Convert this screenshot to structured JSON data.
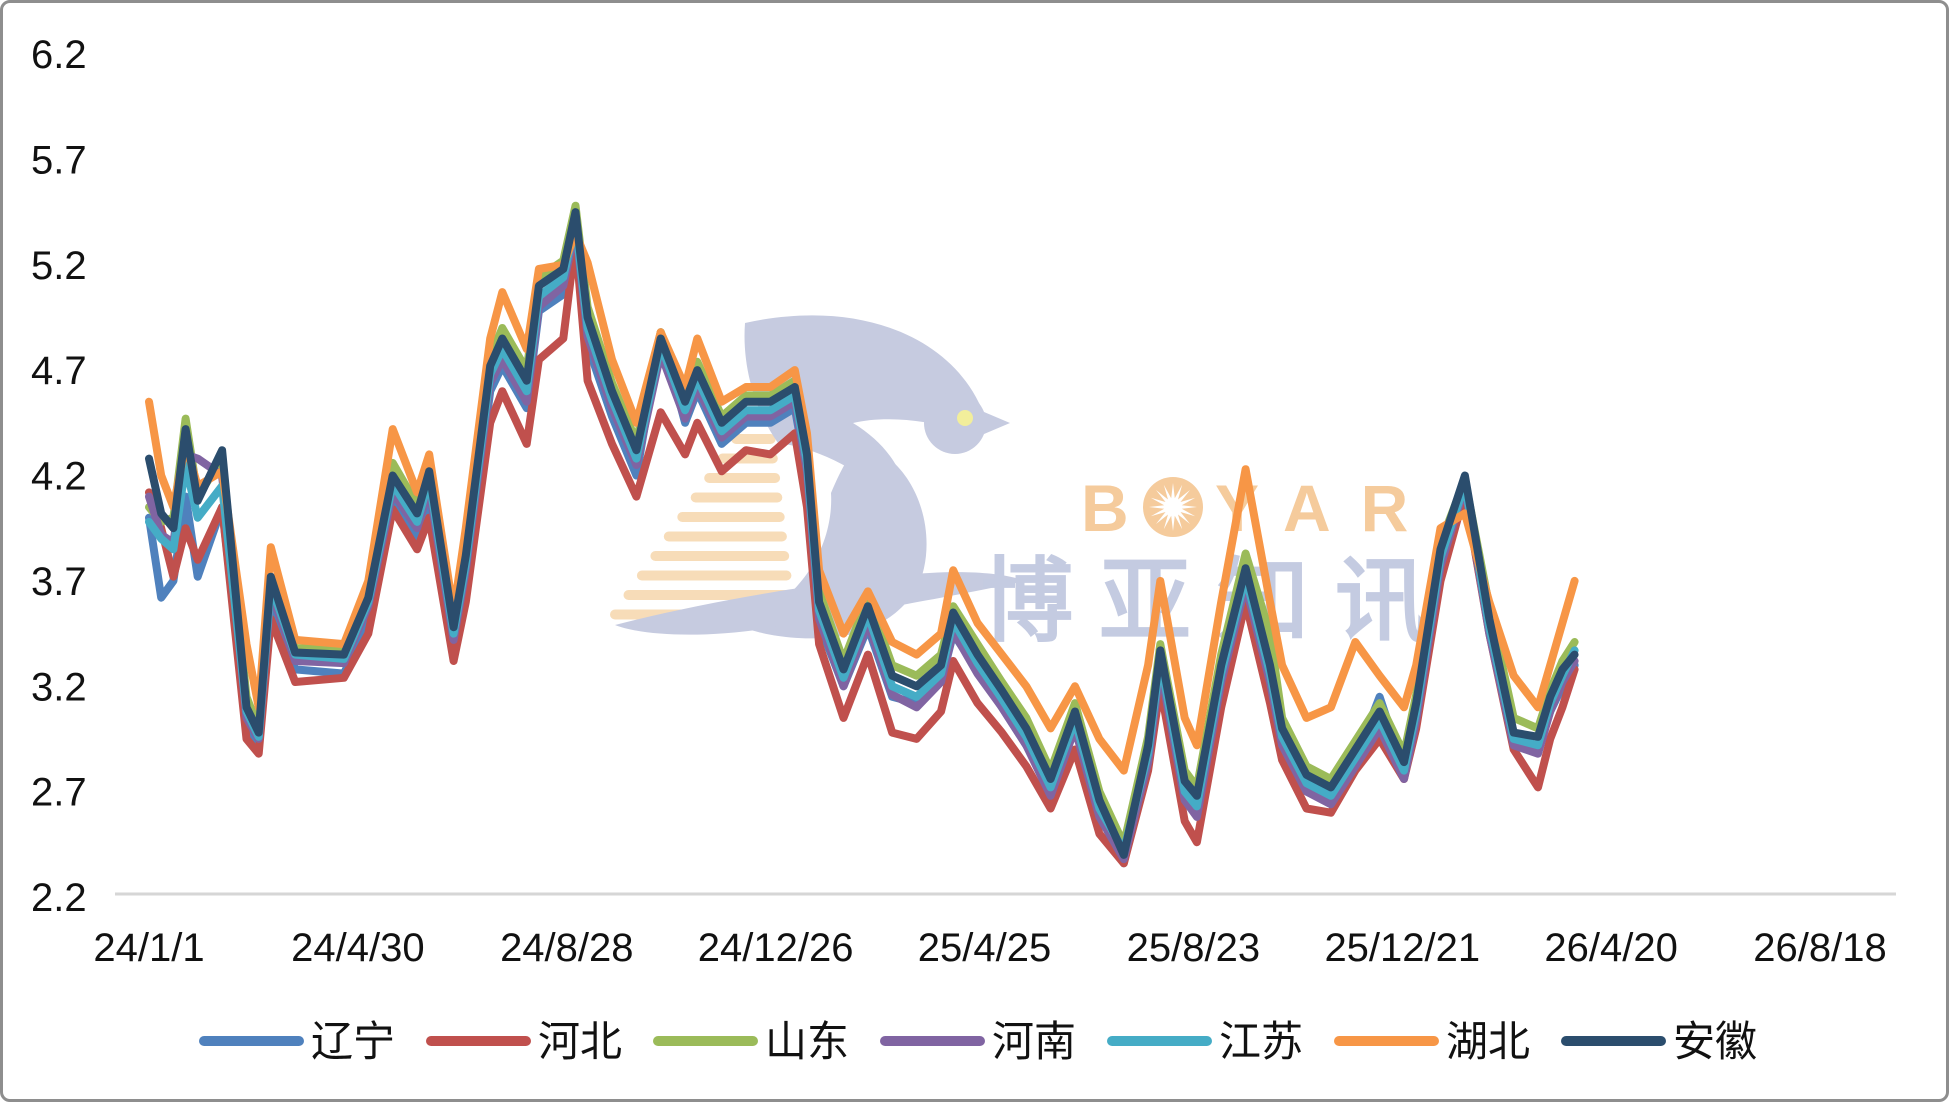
{
  "frame": {
    "background": "#ffffff",
    "border_color": "#8e8e8e",
    "axis_line_color": "#d6d6d6",
    "tick_text_color": "#111111"
  },
  "watermark": {
    "brand_latin_prefix": "B",
    "brand_latin_suffix": "YAR",
    "brand_cjk": "博亚知讯",
    "latin_color": "#f5cb9c",
    "cjk_color": "#c4cbe1",
    "dove_color": "#c6cbe0",
    "stripe_color": "#f7dcb8",
    "eye_color": "#f2ee9b"
  },
  "chart_data": {
    "type": "line",
    "title": "",
    "xlabel": "",
    "ylabel": "",
    "grid": "off",
    "legend_position": "bottom",
    "ylim": [
      2.2,
      6.2
    ],
    "y_ticks": [
      6.2,
      5.7,
      5.2,
      4.7,
      4.2,
      3.7,
      3.2,
      2.7,
      2.2
    ],
    "x_axis": {
      "unit": "days since 24/1/1",
      "tick_days": [
        0,
        120,
        240,
        360,
        480,
        600,
        720,
        840,
        960
      ],
      "tick_labels": [
        "24/1/1",
        "24/4/30",
        "24/8/28",
        "24/12/26",
        "25/4/25",
        "25/8/23",
        "25/12/21",
        "26/4/20",
        "26/8/18"
      ]
    },
    "days": [
      0,
      7,
      14,
      21,
      28,
      42,
      56,
      63,
      70,
      84,
      112,
      126,
      140,
      154,
      161,
      175,
      182,
      196,
      203,
      217,
      224,
      238,
      245,
      252,
      266,
      280,
      294,
      308,
      315,
      329,
      343,
      357,
      371,
      378,
      385,
      399,
      413,
      427,
      441,
      455,
      462,
      476,
      490,
      504,
      518,
      532,
      546,
      560,
      574,
      581,
      595,
      602,
      616,
      630,
      644,
      651,
      665,
      679,
      693,
      707,
      721,
      728,
      742,
      756,
      770,
      784,
      798,
      805,
      812,
      819
    ],
    "series": [
      {
        "id": "liaoning",
        "name": "辽宁",
        "color": "#4F81BD",
        "values": [
          4.0,
          3.62,
          3.7,
          4.1,
          3.72,
          4.05,
          3.0,
          2.92,
          3.6,
          3.28,
          3.26,
          3.5,
          4.06,
          3.9,
          4.08,
          3.38,
          3.7,
          4.6,
          4.72,
          4.52,
          4.98,
          5.06,
          5.3,
          4.82,
          4.48,
          4.2,
          4.88,
          4.45,
          4.6,
          4.35,
          4.45,
          4.45,
          4.52,
          4.2,
          3.5,
          3.2,
          3.48,
          3.15,
          3.12,
          3.22,
          3.45,
          3.28,
          3.1,
          2.92,
          2.7,
          3.0,
          2.6,
          2.36,
          2.85,
          3.3,
          2.7,
          2.62,
          3.22,
          3.7,
          3.28,
          2.95,
          2.72,
          2.68,
          2.85,
          3.15,
          2.8,
          3.06,
          3.78,
          4.12,
          3.46,
          2.92,
          2.9,
          3.08,
          3.2,
          3.3
        ]
      },
      {
        "id": "hebei",
        "name": "河北",
        "color": "#C0504D",
        "values": [
          4.12,
          3.95,
          3.72,
          3.95,
          3.8,
          4.05,
          2.95,
          2.88,
          3.52,
          3.22,
          3.24,
          3.45,
          4.04,
          3.85,
          4.0,
          3.32,
          3.6,
          4.45,
          4.6,
          4.35,
          4.75,
          4.85,
          5.32,
          4.65,
          4.35,
          4.1,
          4.5,
          4.3,
          4.45,
          4.22,
          4.32,
          4.3,
          4.4,
          4.05,
          3.4,
          3.05,
          3.35,
          2.98,
          2.95,
          3.08,
          3.32,
          3.12,
          2.98,
          2.82,
          2.62,
          2.9,
          2.5,
          2.36,
          2.8,
          3.2,
          2.56,
          2.46,
          3.1,
          3.6,
          3.12,
          2.85,
          2.62,
          2.6,
          2.8,
          2.95,
          2.76,
          3.0,
          3.7,
          4.12,
          3.45,
          2.9,
          2.72,
          2.95,
          3.1,
          3.28
        ]
      },
      {
        "id": "shandong",
        "name": "山东",
        "color": "#9BBB59",
        "values": [
          4.05,
          3.98,
          4.0,
          4.47,
          4.1,
          4.28,
          3.15,
          3.0,
          3.7,
          3.38,
          3.38,
          3.66,
          4.26,
          4.06,
          4.26,
          3.52,
          3.86,
          4.76,
          4.9,
          4.7,
          5.14,
          5.22,
          5.48,
          5.0,
          4.64,
          4.36,
          4.88,
          4.58,
          4.74,
          4.48,
          4.58,
          4.58,
          4.65,
          4.34,
          3.65,
          3.32,
          3.62,
          3.3,
          3.25,
          3.35,
          3.58,
          3.4,
          3.22,
          3.05,
          2.8,
          3.12,
          2.7,
          2.45,
          2.96,
          3.4,
          2.8,
          2.72,
          3.35,
          3.83,
          3.45,
          3.05,
          2.82,
          2.76,
          2.94,
          3.12,
          2.88,
          3.16,
          3.88,
          4.18,
          3.58,
          3.05,
          3.0,
          3.18,
          3.32,
          3.41
        ]
      },
      {
        "id": "henan",
        "name": "河南",
        "color": "#8064A2",
        "values": [
          4.1,
          3.92,
          3.88,
          4.3,
          4.28,
          4.2,
          3.05,
          2.95,
          3.65,
          3.32,
          3.31,
          3.58,
          4.12,
          3.95,
          4.14,
          3.42,
          3.75,
          4.64,
          4.75,
          4.55,
          5.0,
          5.1,
          5.38,
          4.86,
          4.52,
          4.25,
          4.78,
          4.47,
          4.62,
          4.38,
          4.48,
          4.48,
          4.55,
          4.22,
          3.52,
          3.2,
          3.5,
          3.16,
          3.1,
          3.22,
          3.46,
          3.26,
          3.1,
          2.92,
          2.68,
          3.0,
          2.58,
          2.38,
          2.84,
          3.29,
          2.66,
          2.58,
          3.22,
          3.68,
          3.22,
          2.92,
          2.7,
          2.64,
          2.82,
          3.0,
          2.76,
          3.04,
          3.77,
          4.15,
          3.45,
          2.92,
          2.88,
          3.08,
          3.22,
          3.32
        ]
      },
      {
        "id": "jiangsu",
        "name": "江苏",
        "color": "#45ACC6",
        "values": [
          3.98,
          3.9,
          3.85,
          4.25,
          4.0,
          4.15,
          3.08,
          2.96,
          3.68,
          3.35,
          3.33,
          3.6,
          4.16,
          3.98,
          4.18,
          3.45,
          3.78,
          4.68,
          4.8,
          4.6,
          5.05,
          5.14,
          5.4,
          4.9,
          4.56,
          4.28,
          4.82,
          4.51,
          4.66,
          4.41,
          4.51,
          4.51,
          4.58,
          4.26,
          3.56,
          3.24,
          3.54,
          3.2,
          3.15,
          3.26,
          3.51,
          3.31,
          3.14,
          2.96,
          2.72,
          3.04,
          2.62,
          2.42,
          2.88,
          3.33,
          2.7,
          2.63,
          3.26,
          3.72,
          3.26,
          2.96,
          2.74,
          2.68,
          2.86,
          3.04,
          2.8,
          3.08,
          3.81,
          4.16,
          3.48,
          2.95,
          2.92,
          3.12,
          3.25,
          3.37
        ]
      },
      {
        "id": "hubei",
        "name": "湖北",
        "color": "#F79646",
        "values": [
          4.55,
          4.2,
          4.05,
          4.35,
          4.15,
          4.22,
          3.4,
          3.1,
          3.86,
          3.42,
          3.4,
          3.7,
          4.42,
          4.12,
          4.3,
          3.55,
          3.95,
          4.85,
          5.07,
          4.8,
          5.18,
          5.2,
          5.35,
          5.21,
          4.75,
          4.45,
          4.88,
          4.62,
          4.85,
          4.55,
          4.62,
          4.62,
          4.7,
          4.4,
          3.75,
          3.45,
          3.65,
          3.41,
          3.35,
          3.45,
          3.75,
          3.5,
          3.35,
          3.2,
          3.0,
          3.2,
          2.95,
          2.8,
          3.3,
          3.7,
          3.05,
          2.92,
          3.6,
          4.23,
          3.6,
          3.3,
          3.05,
          3.1,
          3.41,
          3.25,
          3.1,
          3.3,
          3.95,
          4.02,
          3.6,
          3.25,
          3.1,
          3.3,
          3.5,
          3.7
        ]
      },
      {
        "id": "anhui",
        "name": "安徽",
        "color": "#2B4D6D",
        "values": [
          4.28,
          4.02,
          3.95,
          4.42,
          4.08,
          4.32,
          3.1,
          2.98,
          3.72,
          3.36,
          3.35,
          3.62,
          4.2,
          4.02,
          4.22,
          3.48,
          3.82,
          4.72,
          4.85,
          4.65,
          5.1,
          5.18,
          5.45,
          4.95,
          4.6,
          4.32,
          4.85,
          4.55,
          4.7,
          4.45,
          4.55,
          4.55,
          4.62,
          4.3,
          3.6,
          3.28,
          3.58,
          3.25,
          3.2,
          3.3,
          3.55,
          3.35,
          3.18,
          3.0,
          2.76,
          3.08,
          2.66,
          2.4,
          2.92,
          3.37,
          2.75,
          2.68,
          3.3,
          3.76,
          3.3,
          3.0,
          2.78,
          2.72,
          2.9,
          3.08,
          2.84,
          3.12,
          3.85,
          4.2,
          3.52,
          2.98,
          2.96,
          3.15,
          3.28,
          3.35
        ]
      }
    ]
  }
}
